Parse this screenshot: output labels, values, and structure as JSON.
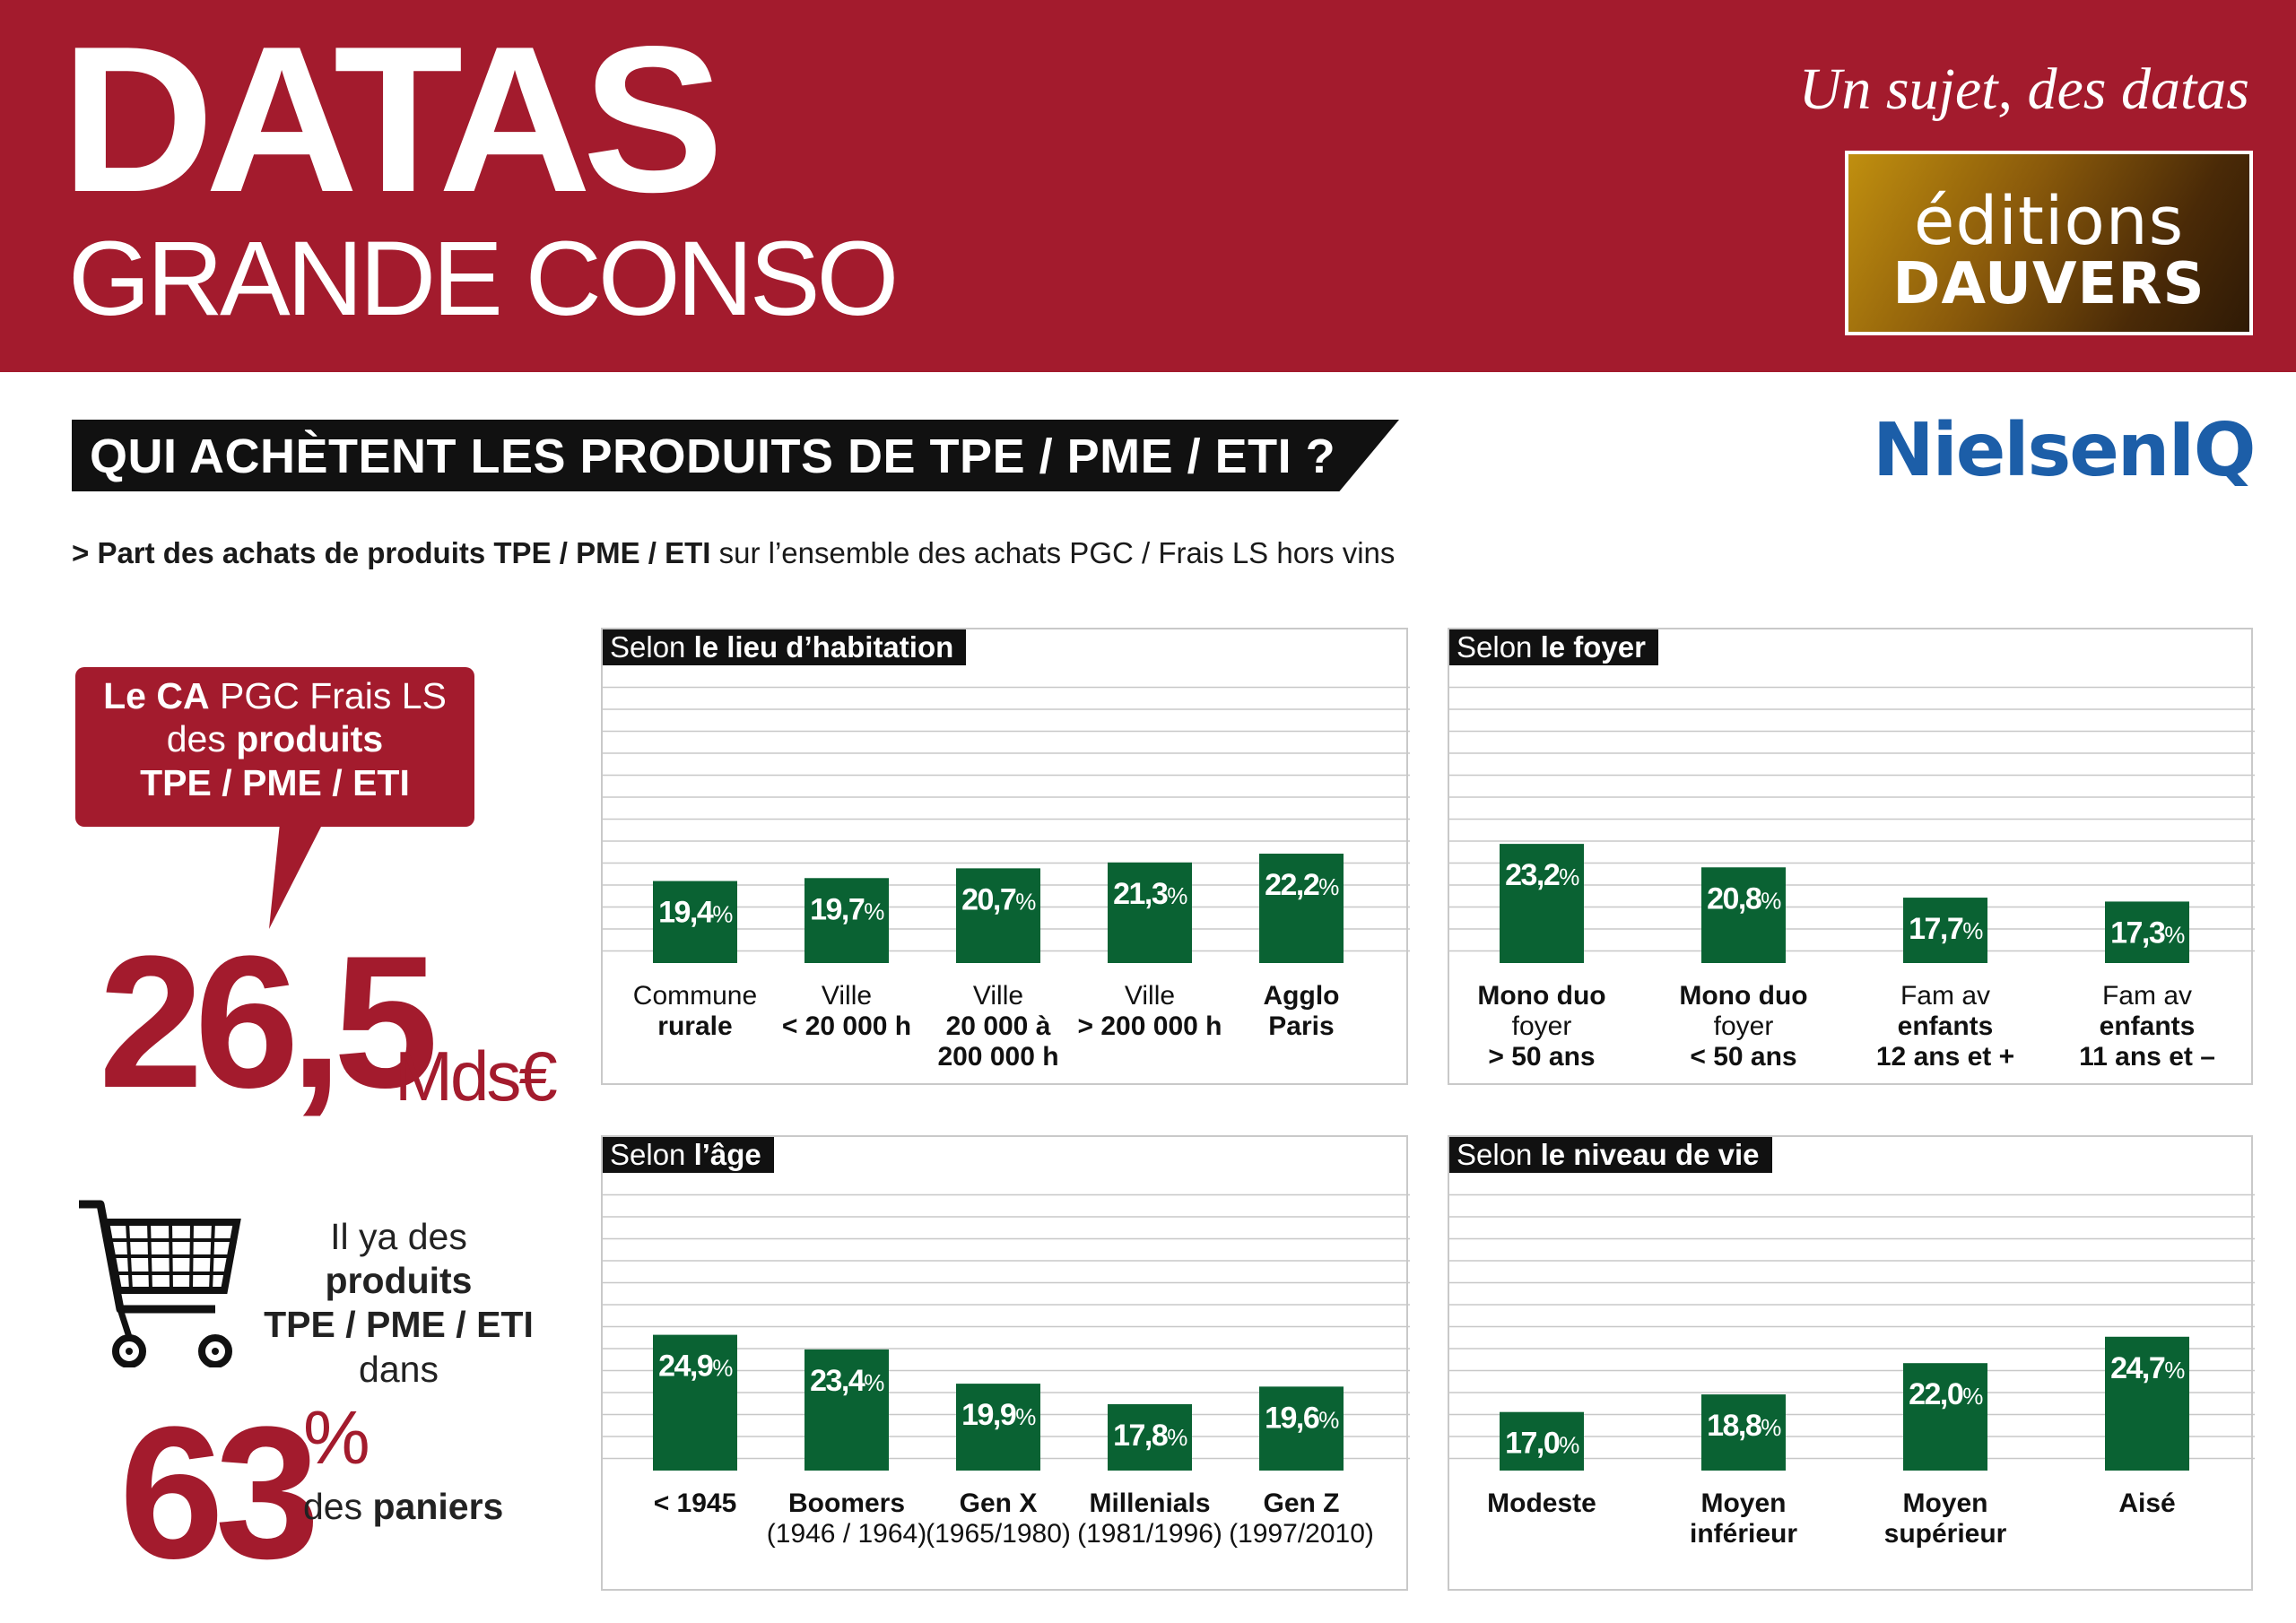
{
  "header": {
    "brand_line1": "DATAS",
    "brand_line2": "GRANDE CONSO",
    "tagline": "Un sujet, des datas",
    "publisher_line1": "éditions",
    "publisher_line2": "DAUVERS"
  },
  "title": "QUI ACHÈTENT LES PRODUITS DE TPE / PME / ETI ?",
  "source_logo": "NielsenIQ",
  "subtitle": {
    "prefix": "> Part des achats de produits TPE / PME / ETI",
    "suffix": " sur l’ensemble des achats PGC / Frais LS hors vins"
  },
  "left": {
    "bubble": {
      "l1_bold": "Le CA",
      "l1_rest": " PGC Frais LS",
      "l2_pre": "des ",
      "l2_bold": "produits",
      "l3": "TPE / PME / ETI"
    },
    "ca_value": "26,5",
    "ca_unit": "Mds€",
    "cart_text": {
      "l1": "Il ya des",
      "l2": "produits",
      "l3": "TPE / PME / ETI",
      "l4": "dans"
    },
    "basket_value": "63",
    "basket_unit": "%",
    "basket_label_pre": "des ",
    "basket_label_bold": "paniers"
  },
  "colors": {
    "bar": "#0a6233",
    "brand_red": "#a31b2d",
    "grid": "#c8c8c8",
    "nielsen_blue": "#1c5ea8"
  },
  "chart_data": [
    {
      "type": "bar",
      "title_prefix": "Selon ",
      "title_bold": "le lieu d’habitation",
      "ylim": [
        0,
        30
      ],
      "value_suffix": "%",
      "categories": [
        {
          "lines": [
            {
              "t": "Commune",
              "b": false
            },
            {
              "t": "rurale",
              "b": true
            }
          ]
        },
        {
          "lines": [
            {
              "t": "Ville",
              "b": false
            },
            {
              "t": "< 20 000 h",
              "b": true
            }
          ]
        },
        {
          "lines": [
            {
              "t": "Ville",
              "b": false
            },
            {
              "t": "20 000 à",
              "b": true
            },
            {
              "t": "200 000 h",
              "b": true
            }
          ]
        },
        {
          "lines": [
            {
              "t": "Ville",
              "b": false
            },
            {
              "t": "> 200 000 h",
              "b": true
            }
          ]
        },
        {
          "lines": [
            {
              "t": "Agglo",
              "b": true
            },
            {
              "t": "Paris",
              "b": true
            }
          ]
        }
      ],
      "values": [
        19.4,
        19.7,
        20.7,
        21.3,
        22.2
      ],
      "labels": [
        "19,4",
        "19,7",
        "20,7",
        "21,3",
        "22,2"
      ]
    },
    {
      "type": "bar",
      "title_prefix": "Selon ",
      "title_bold": "le foyer",
      "ylim": [
        0,
        30
      ],
      "value_suffix": "%",
      "categories": [
        {
          "lines": [
            {
              "t": "Mono duo",
              "b": true
            },
            {
              "t": "foyer",
              "b": false
            },
            {
              "t": "> 50 ans",
              "b": true
            }
          ]
        },
        {
          "lines": [
            {
              "t": "Mono duo",
              "b": true
            },
            {
              "t": "foyer",
              "b": false
            },
            {
              "t": "< 50 ans",
              "b": true
            }
          ]
        },
        {
          "lines": [
            {
              "t": "Fam av",
              "b": false
            },
            {
              "t": "enfants",
              "b": true
            },
            {
              "t": "12 ans et +",
              "b": true
            }
          ]
        },
        {
          "lines": [
            {
              "t": "Fam av",
              "b": false
            },
            {
              "t": "enfants",
              "b": true
            },
            {
              "t": "11 ans et –",
              "b": true
            }
          ]
        }
      ],
      "values": [
        23.2,
        20.8,
        17.7,
        17.3
      ],
      "labels": [
        "23,2",
        "20,8",
        "17,7",
        "17,3"
      ]
    },
    {
      "type": "bar",
      "title_prefix": "Selon ",
      "title_bold": "l’âge",
      "ylim": [
        0,
        30
      ],
      "value_suffix": "%",
      "categories": [
        {
          "lines": [
            {
              "t": "< 1945",
              "b": true
            }
          ]
        },
        {
          "lines": [
            {
              "t": "Boomers",
              "b": true
            },
            {
              "t": "(1946 / 1964)",
              "b": false
            }
          ]
        },
        {
          "lines": [
            {
              "t": "Gen X",
              "b": true
            },
            {
              "t": "(1965/1980)",
              "b": false
            }
          ]
        },
        {
          "lines": [
            {
              "t": "Millenials",
              "b": true
            },
            {
              "t": "(1981/1996)",
              "b": false
            }
          ]
        },
        {
          "lines": [
            {
              "t": "Gen Z",
              "b": true
            },
            {
              "t": "(1997/2010)",
              "b": false
            }
          ]
        }
      ],
      "values": [
        24.9,
        23.4,
        19.9,
        17.8,
        19.6
      ],
      "labels": [
        "24,9",
        "23,4",
        "19,9",
        "17,8",
        "19,6"
      ]
    },
    {
      "type": "bar",
      "title_prefix": "Selon ",
      "title_bold": "le niveau de vie",
      "ylim": [
        0,
        30
      ],
      "value_suffix": "%",
      "categories": [
        {
          "lines": [
            {
              "t": "Modeste",
              "b": true
            }
          ]
        },
        {
          "lines": [
            {
              "t": "Moyen",
              "b": true
            },
            {
              "t": "inférieur",
              "b": true
            }
          ]
        },
        {
          "lines": [
            {
              "t": "Moyen",
              "b": true
            },
            {
              "t": "supérieur",
              "b": true
            }
          ]
        },
        {
          "lines": [
            {
              "t": "Aisé",
              "b": true
            }
          ]
        }
      ],
      "values": [
        17.0,
        18.8,
        22.0,
        24.7
      ],
      "labels": [
        "17,0",
        "18,8",
        "22,0",
        "24,7"
      ]
    }
  ]
}
